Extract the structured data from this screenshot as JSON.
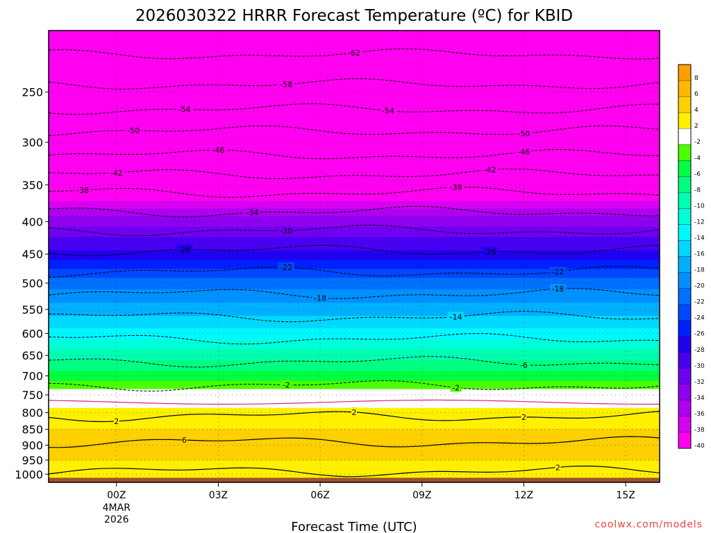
{
  "chart_data": {
    "type": "heatmap",
    "title": "2026030322 HRRR Forecast Temperature (ºC) for KBID",
    "xlabel": "Forecast Time (UTC)",
    "ylabel": "",
    "x_ticks": [
      "00Z",
      "03Z",
      "06Z",
      "09Z",
      "12Z",
      "15Z"
    ],
    "x_date_label": [
      "4MAR",
      "2026"
    ],
    "x_range_hours": [
      -2,
      16
    ],
    "y_scale": "log-pressure",
    "y_ticks": [
      250,
      300,
      350,
      400,
      450,
      500,
      550,
      600,
      650,
      700,
      750,
      800,
      850,
      900,
      950,
      1000
    ],
    "y_range": [
      200,
      1030
    ],
    "grid": "dotted",
    "colorbar": {
      "levels": [
        8,
        6,
        4,
        2,
        -2,
        -4,
        -6,
        -8,
        -10,
        -12,
        -14,
        -16,
        -18,
        -20,
        -22,
        -24,
        -26,
        -28,
        -30,
        -32,
        -34,
        -36,
        -38,
        -40
      ],
      "colors": [
        "#ffa000",
        "#ffb800",
        "#ffd000",
        "#fff000",
        "#ffffff",
        "#4cff00",
        "#00ff40",
        "#00ff80",
        "#00ffb0",
        "#00ffd8",
        "#00f8ff",
        "#00d8ff",
        "#00b0ff",
        "#0090ff",
        "#0070ff",
        "#0048ff",
        "#0020ff",
        "#2000f0",
        "#4800f0",
        "#7000f0",
        "#9000f0",
        "#b000f0",
        "#d800f0",
        "#ff00f0"
      ]
    },
    "temperature_profile": [
      {
        "p": 200,
        "t": -63
      },
      {
        "p": 225,
        "t": -60
      },
      {
        "p": 250,
        "t": -57
      },
      {
        "p": 275,
        "t": -52
      },
      {
        "p": 300,
        "t": -48
      },
      {
        "p": 325,
        "t": -45
      },
      {
        "p": 350,
        "t": -42
      },
      {
        "p": 375,
        "t": -37
      },
      {
        "p": 400,
        "t": -33
      },
      {
        "p": 425,
        "t": -30
      },
      {
        "p": 450,
        "t": -27
      },
      {
        "p": 475,
        "t": -24
      },
      {
        "p": 500,
        "t": -21
      },
      {
        "p": 525,
        "t": -19
      },
      {
        "p": 550,
        "t": -17
      },
      {
        "p": 575,
        "t": -15
      },
      {
        "p": 600,
        "t": -13
      },
      {
        "p": 625,
        "t": -11
      },
      {
        "p": 650,
        "t": -9
      },
      {
        "p": 675,
        "t": -7
      },
      {
        "p": 700,
        "t": -5
      },
      {
        "p": 725,
        "t": -3
      },
      {
        "p": 750,
        "t": 0
      },
      {
        "p": 775,
        "t": 1
      },
      {
        "p": 800,
        "t": 3
      },
      {
        "p": 850,
        "t": 4
      },
      {
        "p": 900,
        "t": 5
      },
      {
        "p": 950,
        "t": 4
      },
      {
        "p": 1000,
        "t": 3
      }
    ],
    "isotherms": [
      {
        "label": "-62",
        "p": 218,
        "label_at": [
          7
        ]
      },
      {
        "label": "-58",
        "p": 243,
        "label_at": [
          5
        ]
      },
      {
        "label": "-54",
        "p": 266,
        "label_at": [
          2,
          8
        ]
      },
      {
        "label": "-50",
        "p": 288,
        "label_at": [
          0.5,
          12
        ]
      },
      {
        "label": "-46",
        "p": 314,
        "label_at": [
          3,
          12
        ]
      },
      {
        "label": "-42",
        "p": 337,
        "label_at": [
          0,
          11
        ]
      },
      {
        "label": "-38",
        "p": 360,
        "label_at": [
          -1,
          10
        ]
      },
      {
        "label": "-34",
        "p": 386,
        "label_at": [
          4
        ]
      },
      {
        "label": "-30",
        "p": 413,
        "label_at": [
          5
        ]
      },
      {
        "label": "-26",
        "p": 444,
        "label_at": [
          2,
          11
        ]
      },
      {
        "label": "-22",
        "p": 480,
        "label_at": [
          5,
          13
        ]
      },
      {
        "label": "-18",
        "p": 520,
        "label_at": [
          6,
          13
        ]
      },
      {
        "label": "-14",
        "p": 565,
        "label_at": [
          10
        ]
      },
      {
        "label": "-10",
        "p": 612,
        "label_at": []
      },
      {
        "label": "-6",
        "p": 665,
        "label_at": [
          12
        ]
      },
      {
        "label": "-2",
        "p": 725,
        "label_at": [
          5,
          10
        ]
      },
      {
        "label": "2",
        "p": 810,
        "label_at": [
          0,
          7,
          12
        ]
      },
      {
        "label": "6",
        "p": 890,
        "label_at": [
          2
        ]
      },
      {
        "label": "2",
        "p": 990,
        "label_at": [
          13
        ]
      }
    ]
  },
  "credit": "coolwx.com/models"
}
